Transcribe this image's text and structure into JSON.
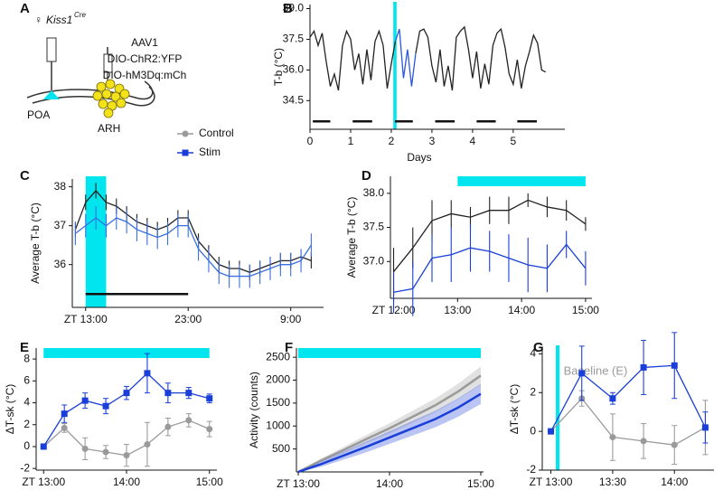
{
  "panel_labels": [
    "A",
    "B",
    "C",
    "D",
    "E",
    "F",
    "G"
  ],
  "diagram": {
    "sex_symbol": "♀",
    "genotype": "Kiss1",
    "superscript": "Cre",
    "virus": [
      "AAV1",
      "DIO-ChR2:YFP",
      "DIO-hM3Dq:mCh"
    ],
    "regions": [
      "POA",
      "ARH"
    ]
  },
  "legend": [
    {
      "name": "Control",
      "color": "#9a9a9a",
      "marker": "circle"
    },
    {
      "name": "Stim",
      "color": "#1a3fd9",
      "marker": "square"
    }
  ],
  "stim_color": "#00e5ee",
  "chart_data": [
    {
      "type": "line",
      "ylabel": "T-b (°C)",
      "xlabel": "Days",
      "x": [
        0,
        0.1,
        0.2,
        0.3,
        0.4,
        0.5,
        0.6,
        0.7,
        0.8,
        0.9,
        1,
        1.1,
        1.2,
        1.3,
        1.4,
        1.5,
        1.6,
        1.7,
        1.8,
        1.9,
        2,
        2.1,
        2.2,
        2.3,
        2.4,
        2.5,
        2.6,
        2.7,
        2.8,
        2.9,
        3,
        3.1,
        3.2,
        3.3,
        3.4,
        3.5,
        3.6,
        3.7,
        3.8,
        3.9,
        4,
        4.1,
        4.2,
        4.3,
        4.4,
        4.5,
        4.6,
        4.7,
        4.8,
        4.9,
        5,
        5.1,
        5.2,
        5.3,
        5.4,
        5.5,
        5.6,
        5.7,
        5.8
      ],
      "series": [
        {
          "color": "#222222",
          "values": [
            37.6,
            37.9,
            37.2,
            37.8,
            36.4,
            35.2,
            35.8,
            35.0,
            37.2,
            37.9,
            37.5,
            36.0,
            36.8,
            35.3,
            37.0,
            35.5,
            37.4,
            37.9,
            37.2,
            35.1,
            36.3,
            37.4,
            null,
            null,
            null,
            null,
            36.8,
            37.9,
            38.0,
            37.6,
            36.2,
            35.4,
            37.0,
            35.2,
            36.2,
            35.0,
            37.6,
            37.9,
            38.1,
            37.0,
            35.6,
            36.9,
            35.1,
            36.3,
            35.3,
            37.2,
            37.8,
            38.0,
            37.1,
            35.8,
            35.3,
            36.5,
            35.1,
            36.2,
            36.9,
            37.7,
            37.3,
            36.0,
            35.9
          ]
        },
        {
          "color": "#2b57e0",
          "values": [
            null,
            null,
            null,
            null,
            null,
            null,
            null,
            null,
            null,
            null,
            null,
            null,
            null,
            null,
            null,
            null,
            null,
            null,
            null,
            null,
            null,
            37.4,
            38.0,
            35.6,
            37.0,
            35.2,
            36.8,
            null,
            null,
            null,
            null,
            null,
            null,
            null,
            null,
            null,
            null,
            null,
            null,
            null,
            null,
            null,
            null,
            null,
            null,
            null,
            null,
            null,
            null,
            null,
            null,
            null,
            null,
            null,
            null,
            null,
            null,
            null,
            null
          ]
        }
      ],
      "xlim": [
        0,
        6.27
      ],
      "xticks": [
        0,
        1,
        2,
        3,
        4,
        5
      ],
      "ylim": [
        33.1,
        39.2
      ],
      "yticks": [
        34.5,
        {
          "value": 36,
          "label": "36.0"
        },
        37.5,
        {
          "value": 39,
          "label": "39.0"
        }
      ],
      "stim": [
        2.05,
        2.13
      ],
      "stim_style": "span",
      "dark_periods": [
        [
          0.07,
          0.5
        ],
        [
          1.05,
          1.53
        ],
        [
          2.09,
          2.53
        ],
        [
          3.08,
          3.56
        ],
        [
          4.1,
          4.57
        ],
        [
          5.1,
          5.58
        ]
      ]
    },
    {
      "type": "line",
      "ylabel": "Average T-b (°C)",
      "x": [
        12,
        13,
        14,
        15,
        16,
        17,
        18,
        19,
        20,
        21,
        22,
        23,
        24,
        25,
        26,
        27,
        28,
        29,
        30,
        31,
        32,
        33,
        34,
        35
      ],
      "series": [
        {
          "color": "#222222",
          "values": [
            36.9,
            37.6,
            37.9,
            37.6,
            37.5,
            37.3,
            37.1,
            37.0,
            36.9,
            37.0,
            37.2,
            37.2,
            36.6,
            36.3,
            36.0,
            35.9,
            35.9,
            35.8,
            35.9,
            36.0,
            36.1,
            36.1,
            36.2,
            36.1
          ],
          "errors": [
            0.2,
            0.2,
            0.2,
            0.2,
            0.2,
            0.2,
            0.2,
            0.2,
            0.2,
            0.2,
            0.2,
            0.2,
            0.2,
            0.2,
            0.2,
            0.2,
            0.2,
            0.2,
            0.2,
            0.2,
            0.2,
            0.2,
            0.2,
            0.2
          ]
        },
        {
          "color": "#3a6fe0",
          "values": [
            36.8,
            37.0,
            37.2,
            37.0,
            37.2,
            37.1,
            36.9,
            36.8,
            36.7,
            36.8,
            37.0,
            37.0,
            36.4,
            36.1,
            35.8,
            35.7,
            35.7,
            35.7,
            35.8,
            35.9,
            36.0,
            36.0,
            36.1,
            36.5
          ],
          "errors": [
            0.3,
            0.3,
            0.3,
            0.3,
            0.3,
            0.3,
            0.3,
            0.3,
            0.3,
            0.3,
            0.3,
            0.3,
            0.3,
            0.3,
            0.3,
            0.3,
            0.3,
            0.3,
            0.3,
            0.3,
            0.3,
            0.3,
            0.3,
            0.3
          ]
        }
      ],
      "xlim": [
        11.7,
        36.2
      ],
      "xticks": [
        {
          "value": 13,
          "label": "ZT 13:00"
        },
        {
          "value": 23,
          "label": "23:00"
        },
        {
          "value": 33,
          "label": "9:00"
        }
      ],
      "ylim": [
        34.9,
        38.2
      ],
      "yticks": [
        36,
        37,
        38
      ],
      "stim": [
        13,
        15
      ],
      "stim_style": "span",
      "dark_periods": [
        [
          13,
          23
        ]
      ]
    },
    {
      "type": "line",
      "ylabel": "Average T-b (°C)",
      "x": [
        12,
        12.3,
        12.6,
        12.9,
        13.2,
        13.5,
        13.8,
        14.1,
        14.4,
        14.7,
        15
      ],
      "series": [
        {
          "color": "#222222",
          "values": [
            36.85,
            37.2,
            37.6,
            37.7,
            37.65,
            37.75,
            37.75,
            37.9,
            37.8,
            37.75,
            37.55
          ],
          "errors": [
            0.35,
            0.3,
            0.3,
            0.2,
            0.15,
            0.2,
            0.2,
            0.1,
            0.15,
            0.15,
            0.1
          ]
        },
        {
          "color": "#1a3fd9",
          "values": [
            36.55,
            36.6,
            37.05,
            37.1,
            37.2,
            37.15,
            37.05,
            36.95,
            36.9,
            37.25,
            36.9
          ],
          "errors": [
            0.3,
            0.4,
            0.35,
            0.4,
            0.35,
            0.3,
            0.35,
            0.4,
            0.35,
            0.2,
            0.25
          ]
        }
      ],
      "xlim": [
        11.95,
        15.1
      ],
      "xticks": [
        {
          "value": 12,
          "label": "ZT 12:00"
        },
        {
          "value": 13,
          "label": "13:00"
        },
        {
          "value": 14,
          "label": "14:00"
        },
        {
          "value": 15,
          "label": "15:00"
        }
      ],
      "ylim": [
        36.46,
        38.25
      ],
      "yticks": [
        {
          "value": 37,
          "label": "37.0"
        },
        37.5,
        {
          "value": 38,
          "label": "38.0"
        }
      ],
      "stim": [
        13,
        15
      ],
      "stim_style": "top"
    },
    {
      "type": "line",
      "ylabel": "ΔT-sk (°C)",
      "x": [
        13,
        13.25,
        13.5,
        13.75,
        14,
        14.25,
        14.5,
        14.75,
        15
      ],
      "series": [
        {
          "color": "#9a9a9a",
          "marker": "circle",
          "values": [
            0,
            1.7,
            -0.2,
            -0.5,
            -0.8,
            0.2,
            1.8,
            2.4,
            1.6
          ],
          "errors": [
            0,
            0.4,
            1.0,
            0.6,
            1.0,
            2.0,
            0.8,
            0.6,
            0.7
          ]
        },
        {
          "color": "#1a3fd9",
          "marker": "square",
          "values": [
            0,
            3.0,
            4.2,
            3.7,
            4.9,
            6.7,
            4.9,
            4.9,
            4.4
          ],
          "errors": [
            0,
            0.8,
            0.7,
            0.7,
            0.6,
            1.8,
            0.9,
            0.5,
            0.4
          ]
        }
      ],
      "xlim": [
        12.91,
        15.09
      ],
      "xticks": [
        {
          "value": 13,
          "label": "ZT 13:00"
        },
        {
          "value": 14,
          "label": "14:00"
        },
        {
          "value": 15,
          "label": "15:00"
        }
      ],
      "ylim": [
        -2.15,
        9
      ],
      "yticks": [
        -2,
        0,
        2,
        4,
        6,
        8
      ],
      "stim": [
        13,
        15
      ],
      "stim_style": "top"
    },
    {
      "type": "line",
      "ylabel": "Activity (counts)",
      "error_style": "band",
      "x": [
        13,
        13.25,
        13.5,
        13.75,
        14,
        14.25,
        14.5,
        14.75,
        15
      ],
      "series": [
        {
          "color": "#9a9a9a",
          "values": [
            0,
            250,
            480,
            720,
            950,
            1200,
            1450,
            1750,
            2100
          ],
          "errors": [
            0,
            40,
            70,
            90,
            110,
            130,
            150,
            170,
            200
          ]
        },
        {
          "color": "#1a3fd9",
          "values": [
            0,
            170,
            360,
            550,
            750,
            950,
            1150,
            1400,
            1700
          ],
          "errors": [
            0,
            60,
            90,
            120,
            140,
            160,
            180,
            200,
            220
          ]
        }
      ],
      "xlim": [
        12.98,
        15.03
      ],
      "xticks": [
        {
          "value": 13,
          "label": "ZT 13:00"
        },
        {
          "value": 14,
          "label": "14:00"
        },
        {
          "value": 15,
          "label": "15:00"
        }
      ],
      "ylim": [
        0,
        2700
      ],
      "yticks": [
        500,
        1000,
        1500,
        2000,
        2500
      ],
      "stim": [
        13,
        15
      ],
      "stim_style": "top"
    },
    {
      "type": "line",
      "ylabel": "ΔT-sk (°C)",
      "annotation": "Baseline (E)",
      "x": [
        13,
        13.25,
        13.5,
        13.75,
        14,
        14.25
      ],
      "series": [
        {
          "color": "#9a9a9a",
          "marker": "circle",
          "values": [
            0,
            1.7,
            -0.3,
            -0.5,
            -0.7,
            0.2
          ],
          "errors": [
            0,
            0.4,
            1.2,
            0.9,
            1.0,
            1.4
          ]
        },
        {
          "color": "#1a3fd9",
          "marker": "square",
          "values": [
            0,
            3.0,
            1.7,
            3.3,
            3.4,
            0.2
          ],
          "errors": [
            0,
            1.4,
            0.3,
            1.4,
            1.7,
            0.8
          ]
        }
      ],
      "xlim": [
        12.93,
        14.32
      ],
      "xticks": [
        {
          "value": 13,
          "label": "ZT 13:00"
        },
        {
          "value": 13.5,
          "label": "13:30"
        },
        {
          "value": 14,
          "label": "14:00"
        }
      ],
      "ylim": [
        -2,
        4.3
      ],
      "yticks": [
        -2,
        0,
        2,
        4
      ],
      "stim": [
        13.04,
        13.07
      ],
      "stim_style": "span"
    }
  ]
}
